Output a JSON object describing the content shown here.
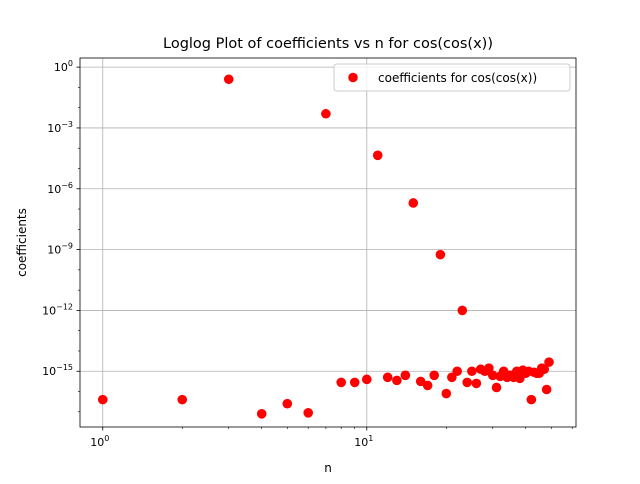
{
  "chart_data": {
    "type": "scatter",
    "title": "Loglog Plot of coefficients vs n for cos(cos(x))",
    "xlabel": "n",
    "ylabel": "coefficients",
    "xscale": "log",
    "yscale": "log",
    "xlim": [
      0.82,
      62
    ],
    "ylim_exp": [
      -17.75,
      0.45
    ],
    "grid": true,
    "legend_position": "top-right",
    "marker_color": "#ff0000",
    "x_ticks": [
      {
        "value": 1,
        "base": "10",
        "exp": "0"
      },
      {
        "value": 10,
        "base": "10",
        "exp": "1"
      }
    ],
    "y_ticks": [
      {
        "exp_value": 0,
        "base": "10",
        "exp": "0"
      },
      {
        "exp_value": -3,
        "base": "10",
        "exp": "−3"
      },
      {
        "exp_value": -6,
        "base": "10",
        "exp": "−6"
      },
      {
        "exp_value": -9,
        "base": "10",
        "exp": "−9"
      },
      {
        "exp_value": -12,
        "base": "10",
        "exp": "−12"
      },
      {
        "exp_value": -15,
        "base": "10",
        "exp": "−15"
      }
    ],
    "series": [
      {
        "name": "coefficients for cos(cos(x))",
        "points": [
          [
            1,
            -16.4
          ],
          [
            2,
            -16.4
          ],
          [
            3,
            -0.6
          ],
          [
            4,
            -17.1
          ],
          [
            5,
            -16.6
          ],
          [
            6,
            -17.05
          ],
          [
            7,
            -2.3
          ],
          [
            8,
            -15.55
          ],
          [
            9,
            -15.55
          ],
          [
            10,
            -15.4
          ],
          [
            11,
            -4.35
          ],
          [
            12,
            -15.3
          ],
          [
            13,
            -15.45
          ],
          [
            14,
            -15.2
          ],
          [
            15,
            -6.7
          ],
          [
            16,
            -15.5
          ],
          [
            17,
            -15.7
          ],
          [
            18,
            -15.2
          ],
          [
            19,
            -9.25
          ],
          [
            20,
            -16.1
          ],
          [
            21,
            -15.3
          ],
          [
            22,
            -15.0
          ],
          [
            23,
            -12.0
          ],
          [
            24,
            -15.55
          ],
          [
            25,
            -15.0
          ],
          [
            26,
            -15.6
          ],
          [
            27,
            -14.9
          ],
          [
            28,
            -15.0
          ],
          [
            29,
            -14.85
          ],
          [
            30,
            -15.2
          ],
          [
            31,
            -15.8
          ],
          [
            32,
            -15.25
          ],
          [
            33,
            -15.0
          ],
          [
            34,
            -15.3
          ],
          [
            35,
            -15.2
          ],
          [
            36,
            -15.3
          ],
          [
            37,
            -15.0
          ],
          [
            38,
            -15.35
          ],
          [
            39,
            -14.95
          ],
          [
            40,
            -15.1
          ],
          [
            41,
            -15.0
          ],
          [
            42,
            -16.4
          ],
          [
            43,
            -15.05
          ],
          [
            44,
            -15.1
          ],
          [
            45,
            -15.1
          ],
          [
            46,
            -14.85
          ],
          [
            47,
            -14.9
          ],
          [
            48,
            -15.9
          ],
          [
            49,
            -14.55
          ]
        ]
      }
    ]
  }
}
